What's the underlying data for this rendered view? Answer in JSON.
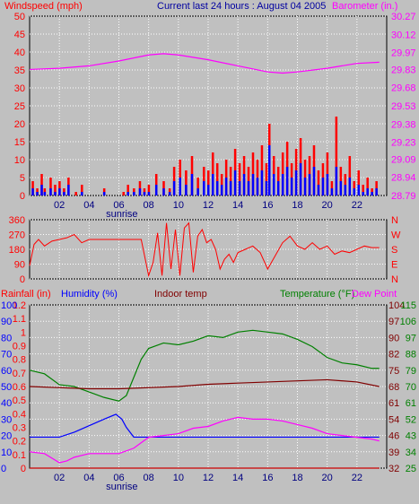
{
  "header": {
    "left_title": "Windspeed (mph)",
    "center_title": "Current last 24 hours : August 04 2005",
    "right_title": "Barometer (in.)"
  },
  "colors": {
    "background": "#c0c0c0",
    "grid": "#ffffff",
    "red": "#ff0000",
    "blue": "#0000ff",
    "magenta": "#ff00ff",
    "green": "#008000",
    "maroon": "#800000",
    "dark_red": "#cc0000"
  },
  "x_axis": {
    "ticks": [
      "02",
      "04",
      "06",
      "08",
      "10",
      "12",
      "14",
      "16",
      "18",
      "20",
      "22"
    ],
    "sunrise_label": "sunrise"
  },
  "panel3_titles": {
    "rainfall": "Rainfall (in)",
    "humidity": "Humidity (%)",
    "indoor": "Indoor temp",
    "temperature": "Temperature (°F)",
    "dewpoint": "Dew Point"
  },
  "chart_data": [
    {
      "type": "bar",
      "id": "wind",
      "title": "Windspeed (mph)",
      "ylim": [
        0,
        50
      ],
      "yticks": [
        "0",
        "5",
        "10",
        "15",
        "20",
        "25",
        "30",
        "35",
        "40",
        "45",
        "50"
      ],
      "right_axis": {
        "label": "Barometer (in.)",
        "ylim": [
          28.79,
          30.27
        ],
        "ticks": [
          "28.79",
          "28.94",
          "29.09",
          "29.23",
          "29.38",
          "29.53",
          "29.68",
          "29.83",
          "29.97",
          "30.12",
          "30.27"
        ]
      },
      "series": [
        {
          "name": "gust",
          "color": "#ff0000",
          "x": [
            0.2,
            0.5,
            0.8,
            1.0,
            1.4,
            1.7,
            2.0,
            2.3,
            2.6,
            3.1,
            3.5,
            5.0,
            6.3,
            6.6,
            7.0,
            7.4,
            7.7,
            8.0,
            8.5,
            9.0,
            9.4,
            9.7,
            10.1,
            10.5,
            10.9,
            11.3,
            11.7,
            12.0,
            12.3,
            12.6,
            12.9,
            13.2,
            13.5,
            13.8,
            14.1,
            14.4,
            14.7,
            15.0,
            15.3,
            15.6,
            15.9,
            16.1,
            16.4,
            16.7,
            17.0,
            17.3,
            17.6,
            17.9,
            18.2,
            18.5,
            18.8,
            19.1,
            19.4,
            19.7,
            20.0,
            20.3,
            20.6,
            20.9,
            21.2,
            21.5,
            21.8,
            22.1,
            22.4,
            22.7,
            23.0,
            23.3
          ],
          "values": [
            4,
            2,
            6,
            2,
            5,
            3,
            4,
            2,
            5,
            1,
            3,
            2,
            1,
            3,
            2,
            4,
            2,
            3,
            6,
            4,
            2,
            8,
            10,
            7,
            11,
            5,
            8,
            7,
            12,
            9,
            6,
            10,
            8,
            13,
            9,
            11,
            8,
            12,
            10,
            14,
            9,
            20,
            11,
            8,
            12,
            15,
            9,
            13,
            16,
            10,
            11,
            14,
            7,
            9,
            12,
            4,
            22,
            8,
            6,
            11,
            4,
            7,
            3,
            5,
            2,
            4
          ]
        },
        {
          "name": "average",
          "color": "#0000ff",
          "x": [
            0.2,
            0.5,
            0.8,
            1.0,
            1.4,
            1.7,
            2.0,
            2.3,
            2.6,
            3.1,
            3.5,
            5.0,
            6.3,
            6.6,
            7.0,
            7.4,
            7.7,
            8.0,
            8.5,
            9.0,
            9.4,
            9.7,
            10.1,
            10.5,
            10.9,
            11.3,
            11.7,
            12.0,
            12.3,
            12.6,
            12.9,
            13.2,
            13.5,
            13.8,
            14.1,
            14.4,
            14.7,
            15.0,
            15.3,
            15.6,
            15.9,
            16.1,
            16.4,
            16.7,
            17.0,
            17.3,
            17.6,
            17.9,
            18.2,
            18.5,
            18.8,
            19.1,
            19.4,
            19.7,
            20.0,
            20.3,
            20.6,
            20.9,
            21.2,
            21.5,
            21.8,
            22.1,
            22.4,
            22.7,
            23.0,
            23.3
          ],
          "values": [
            2,
            1,
            3,
            1,
            2,
            1,
            2,
            1,
            3,
            0,
            1,
            1,
            0,
            1,
            1,
            2,
            1,
            1,
            3,
            2,
            1,
            4,
            5,
            3,
            6,
            2,
            4,
            3,
            6,
            4,
            3,
            5,
            4,
            7,
            4,
            6,
            4,
            6,
            5,
            7,
            4,
            14,
            6,
            4,
            6,
            8,
            5,
            7,
            9,
            5,
            6,
            8,
            3,
            5,
            6,
            2,
            8,
            4,
            3,
            5,
            2,
            3,
            1,
            2,
            1,
            2
          ]
        }
      ],
      "barometer_line": {
        "color": "#ff00ff",
        "x": [
          0,
          2,
          4,
          6,
          8,
          9,
          10,
          12,
          14,
          16,
          17,
          18,
          20,
          22,
          23.5
        ],
        "values": [
          29.83,
          29.84,
          29.86,
          29.9,
          29.95,
          29.96,
          29.95,
          29.91,
          29.86,
          29.81,
          29.8,
          29.81,
          29.84,
          29.88,
          29.89
        ]
      }
    },
    {
      "type": "line",
      "id": "direction",
      "ylim": [
        0,
        360
      ],
      "yticks": [
        "0",
        "90",
        "180",
        "270",
        "360"
      ],
      "right_labels": [
        "N",
        "W",
        "S",
        "E",
        "N"
      ],
      "series": [
        {
          "name": "direction",
          "color": "#ff0000",
          "x": [
            0,
            0.3,
            0.6,
            1.0,
            1.5,
            2.0,
            2.5,
            3.0,
            3.5,
            4.0,
            5.0,
            6.0,
            7.0,
            7.5,
            8.0,
            8.3,
            8.6,
            8.9,
            9.2,
            9.5,
            9.8,
            10.1,
            10.4,
            10.7,
            11.0,
            11.3,
            11.6,
            11.9,
            12.2,
            12.5,
            12.8,
            13.1,
            13.4,
            13.7,
            14.0,
            14.5,
            15.0,
            15.5,
            16.0,
            16.5,
            17.0,
            17.5,
            18.0,
            18.5,
            19.0,
            19.5,
            20.0,
            20.5,
            21.0,
            21.5,
            22.0,
            22.5,
            23.0,
            23.5
          ],
          "values": [
            80,
            210,
            240,
            200,
            230,
            240,
            250,
            270,
            220,
            240,
            240,
            240,
            240,
            240,
            20,
            100,
            280,
            20,
            340,
            60,
            300,
            20,
            310,
            340,
            40,
            260,
            300,
            220,
            240,
            180,
            60,
            120,
            150,
            100,
            160,
            180,
            200,
            160,
            60,
            140,
            220,
            260,
            200,
            180,
            220,
            180,
            200,
            150,
            170,
            160,
            180,
            200,
            190,
            190
          ]
        }
      ]
    },
    {
      "type": "line",
      "id": "climate",
      "axes": {
        "rainfall_left": {
          "ylim": [
            0,
            1.2
          ],
          "ticks": [
            "0",
            "0.1",
            "0.2",
            "0.3",
            "0.4",
            "0.5",
            "0.6",
            "0.7",
            "0.8",
            "0.9",
            "1",
            "1.1",
            "1.2"
          ]
        },
        "humidity_left": {
          "ylim": [
            0,
            100
          ],
          "ticks": [
            "0",
            "10",
            "20",
            "30",
            "40",
            "50",
            "60",
            "70",
            "80",
            "90",
            "100"
          ]
        },
        "indoor_right": {
          "ylim": [
            32,
            104
          ],
          "ticks": [
            "32",
            "39",
            "46",
            "54",
            "61",
            "68",
            "75",
            "82",
            "90",
            "97",
            "104"
          ]
        },
        "temperature_right": {
          "ylim": [
            25,
            115
          ],
          "ticks": [
            "25",
            "34",
            "43",
            "52",
            "61",
            "70",
            "79",
            "88",
            "97",
            "106",
            "115"
          ]
        }
      },
      "series": [
        {
          "name": "Temperature (°F)",
          "color": "#008000",
          "x": [
            0,
            1,
            2,
            3,
            4,
            5,
            6,
            6.5,
            7,
            7.5,
            8,
            9,
            10,
            11,
            12,
            13,
            14,
            15,
            16,
            17,
            18,
            19,
            20,
            21,
            22,
            23,
            23.5
          ],
          "values": [
            79,
            77,
            71,
            70,
            67,
            64,
            62,
            65,
            75,
            85,
            91,
            94,
            93,
            95,
            98,
            97,
            100,
            101,
            100,
            99,
            96,
            92,
            86,
            83,
            82,
            80,
            80
          ]
        },
        {
          "name": "Indoor temp",
          "color": "#800000",
          "x": [
            0,
            2,
            4,
            6,
            8,
            10,
            12,
            14,
            16,
            18,
            20,
            22,
            23.5
          ],
          "values": [
            68,
            67.5,
            67,
            67,
            67.5,
            68,
            69,
            69.5,
            70,
            70.5,
            71,
            70,
            68
          ]
        },
        {
          "name": "Humidity (%)",
          "color": "#0000ff",
          "x": [
            0,
            2,
            3,
            4,
            5,
            5.8,
            6.2,
            6.5,
            7,
            8,
            10,
            12,
            14,
            16,
            18,
            20,
            22,
            23.5
          ],
          "values": [
            19,
            19,
            22,
            26,
            30,
            33,
            30,
            25,
            19,
            19,
            19,
            19,
            19,
            19,
            19,
            19,
            19,
            19
          ]
        },
        {
          "name": "Dew Point",
          "color": "#ff00ff",
          "x": [
            0,
            1,
            2,
            2.5,
            3,
            4,
            5,
            6,
            7,
            8,
            9,
            10,
            11,
            12,
            13,
            14,
            15,
            16,
            17,
            18,
            19,
            20,
            21,
            22,
            23,
            23.5
          ],
          "values": [
            34,
            33,
            28,
            29,
            31,
            33,
            33,
            33,
            36,
            42,
            43,
            44,
            47,
            48,
            51,
            53,
            52,
            52,
            51,
            49,
            47,
            44,
            43,
            42,
            41,
            40
          ]
        },
        {
          "name": "Rainfall (in)",
          "color": "#cc0000",
          "x": [
            0,
            23.5
          ],
          "values": [
            0,
            0
          ]
        }
      ]
    }
  ]
}
